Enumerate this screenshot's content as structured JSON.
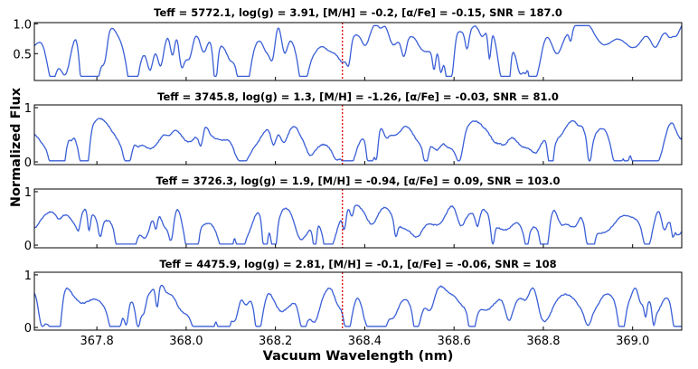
{
  "chart_data": {
    "type": "line",
    "figure": "stellar spectra, 4 stacked panels",
    "xlabel": "Vacuum Wavelength (nm)",
    "ylabel": "Normalized Flux",
    "xlim": [
      367.66,
      369.11
    ],
    "xticks": [
      "367.8",
      "368.0",
      "368.2",
      "368.4",
      "368.6",
      "368.8",
      "369.0"
    ],
    "xtick_values": [
      367.8,
      368.0,
      368.2,
      368.4,
      368.6,
      368.8,
      369.0
    ],
    "marker_line": {
      "x": 368.35,
      "color": "#e00000",
      "style": "dotted"
    },
    "line_color": "#3a5fd6",
    "panels": [
      {
        "title": "Teff = 5772.1, log(g) = 3.91, [M/H] = -0.2, [α/Fe] = -0.15, SNR = 187.0",
        "ylim": [
          0.05,
          1.02
        ],
        "yticks": [
          "1.0",
          "0.5"
        ],
        "ytick_values": [
          1.0,
          0.5
        ],
        "baseline": 0.82,
        "amplitude": 0.6,
        "min": 0.12,
        "max": 0.97,
        "noise": 0.01,
        "seed": 11
      },
      {
        "title": "Teff = 3745.8, log(g) = 1.3, [M/H] = -1.26, [α/Fe] = -0.03, SNR = 81.0",
        "ylim": [
          -0.05,
          1.05
        ],
        "yticks": [
          "1",
          "0"
        ],
        "ytick_values": [
          1,
          0
        ],
        "baseline": 0.52,
        "amplitude": 0.45,
        "min": 0.02,
        "max": 0.88,
        "noise": 0.02,
        "seed": 23
      },
      {
        "title": "Teff = 3726.3, log(g) = 1.9, [M/H] = -0.94, [α/Fe] = 0.09, SNR = 103.0",
        "ylim": [
          -0.05,
          1.05
        ],
        "yticks": [
          "1",
          "0"
        ],
        "ytick_values": [
          1,
          0
        ],
        "baseline": 0.55,
        "amplitude": 0.5,
        "min": 0.02,
        "max": 0.85,
        "noise": 0.02,
        "seed": 37
      },
      {
        "title": "Teff = 4475.9, log(g) = 2.81, [M/H] = -0.1, [α/Fe] = -0.06, SNR = 108",
        "ylim": [
          -0.05,
          1.05
        ],
        "yticks": [
          "1",
          "0"
        ],
        "ytick_values": [
          1,
          0
        ],
        "baseline": 0.6,
        "amplitude": 0.55,
        "min": 0.02,
        "max": 0.9,
        "noise": 0.02,
        "seed": 51
      }
    ]
  }
}
